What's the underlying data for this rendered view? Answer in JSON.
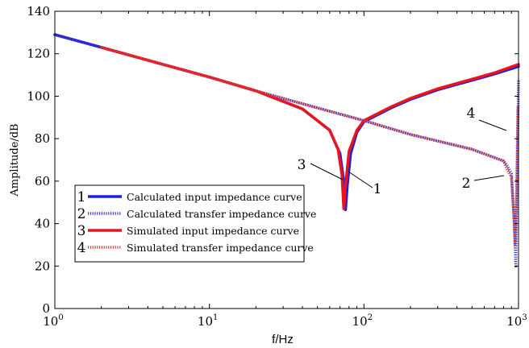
{
  "chart_data": {
    "type": "line",
    "title": "",
    "xlabel": "f/Hz",
    "ylabel": "Amplitude/dB",
    "xscale": "log",
    "xlim": [
      1,
      1000
    ],
    "ylim": [
      0,
      140
    ],
    "grid": false,
    "legend_position": "bottom-left",
    "yticks": [
      "0",
      "20",
      "40",
      "60",
      "80",
      "100",
      "120",
      "140"
    ],
    "xticks": [
      {
        "value": 1,
        "base": "10",
        "exp": "0"
      },
      {
        "value": 10,
        "base": "10",
        "exp": "1"
      },
      {
        "value": 100,
        "base": "10",
        "exp": "2"
      },
      {
        "value": 1000,
        "base": "10",
        "exp": "3"
      }
    ],
    "series": [
      {
        "name": "Calculated input impedance curve",
        "marker": "1",
        "color": "#1f1fdc",
        "style": "solid",
        "x": [
          1,
          2,
          5,
          10,
          20,
          40,
          60,
          70,
          74,
          76,
          78,
          82,
          90,
          100,
          150,
          200,
          300,
          500,
          700,
          1000
        ],
        "y": [
          129,
          123,
          115,
          109,
          102.5,
          94,
          84,
          73,
          60,
          46.5,
          58,
          73,
          83,
          88,
          94.5,
          98.5,
          103,
          107.5,
          110.5,
          114
        ]
      },
      {
        "name": "Calculated transfer impedance curve",
        "marker": "2",
        "color": "#3c3cd2",
        "style": "dotted",
        "x": [
          1,
          2,
          5,
          10,
          20,
          50,
          100,
          200,
          500,
          800,
          850,
          900,
          940,
          960,
          980,
          1000
        ],
        "y": [
          129,
          123,
          115,
          109,
          102.5,
          94.5,
          88.5,
          82,
          75,
          69.5,
          67,
          63.5,
          40,
          20,
          60,
          108
        ]
      },
      {
        "name": "Simulated input impedance curve",
        "marker": "3",
        "color": "#e8141e",
        "style": "solid",
        "x": [
          2,
          5,
          10,
          20,
          40,
          60,
          68,
          72,
          74,
          76,
          80,
          90,
          100,
          150,
          200,
          300,
          500,
          700,
          1000
        ],
        "y": [
          123,
          115,
          109,
          102.5,
          94,
          84,
          75,
          63,
          47,
          58,
          74,
          84,
          88.5,
          95,
          99,
          103.5,
          108,
          111,
          115
        ]
      },
      {
        "name": "Simulated transfer impedance curve",
        "marker": "4",
        "color": "#dc3c3c",
        "style": "dotted",
        "x": [
          2,
          5,
          10,
          20,
          50,
          100,
          200,
          500,
          800,
          850,
          900,
          930,
          950,
          970,
          990
        ],
        "y": [
          123,
          115,
          109,
          102.5,
          94.5,
          88.5,
          82,
          75,
          69.5,
          65,
          62,
          45,
          30,
          55,
          95
        ]
      }
    ],
    "annotations": [
      {
        "text": "1",
        "x": 118,
        "y": 55
      },
      {
        "text": "2",
        "x": 560,
        "y": 60
      },
      {
        "text": "3",
        "x": 42,
        "y": 66
      },
      {
        "text": "4",
        "x": 580,
        "y": 86
      }
    ]
  }
}
